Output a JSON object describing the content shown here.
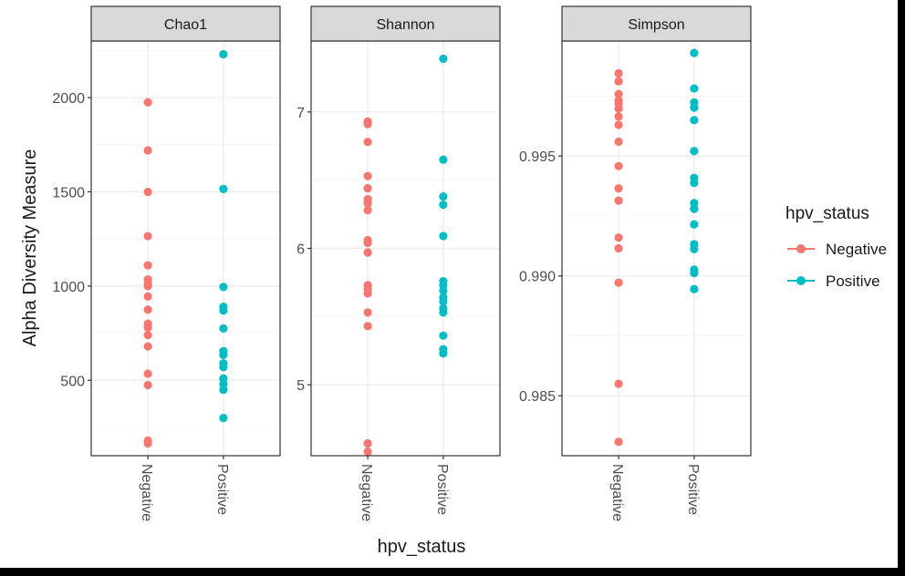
{
  "colors": {
    "negative": "#F8766D",
    "positive": "#00BFC4",
    "strip_fill": "#D9D9D9",
    "grid_major": "#EBEBEB",
    "grid_minor": "#F5F5F5",
    "frame": "#333333",
    "text": "#1A1A1A",
    "tick_text": "#4D4D4D",
    "outer_background": "#000000"
  },
  "chart_data": {
    "type": "scatter",
    "xlabel": "hpv_status",
    "ylabel": "Alpha Diversity Measure",
    "categories": [
      "Negative",
      "Positive"
    ],
    "legend": {
      "title": "hpv_status",
      "placement": "right",
      "entries": [
        "Negative",
        "Positive"
      ]
    },
    "grid": true,
    "facets": [
      {
        "title": "Chao1",
        "ylim": [
          100,
          2300
        ],
        "yticks": [
          500,
          1000,
          1500,
          2000
        ],
        "ytick_labels": [
          "500",
          "1000",
          "1500",
          "2000"
        ],
        "series": [
          {
            "name": "Negative",
            "values": [
              1975,
              1720,
              1500,
              1265,
              1110,
              1035,
              1010,
              1000,
              945,
              875,
              800,
              780,
              740,
              680,
              535,
              475,
              180,
              165
            ]
          },
          {
            "name": "Positive",
            "values": [
              2230,
              1515,
              995,
              890,
              870,
              775,
              655,
              635,
              590,
              570,
              510,
              480,
              450,
              300
            ]
          }
        ]
      },
      {
        "title": "Shannon",
        "ylim": [
          4.48,
          7.52
        ],
        "yticks": [
          5,
          6,
          7
        ],
        "ytick_labels": [
          "5",
          "6",
          "7"
        ],
        "series": [
          {
            "name": "Negative",
            "values": [
              6.93,
              6.91,
              6.78,
              6.53,
              6.44,
              6.36,
              6.33,
              6.28,
              6.06,
              6.04,
              5.97,
              5.73,
              5.7,
              5.67,
              5.53,
              5.43,
              4.57,
              4.51
            ]
          },
          {
            "name": "Positive",
            "values": [
              7.39,
              6.65,
              6.38,
              6.32,
              6.09,
              5.76,
              5.73,
              5.69,
              5.64,
              5.61,
              5.56,
              5.53,
              5.36,
              5.26,
              5.23
            ]
          }
        ]
      },
      {
        "title": "Simpson",
        "ylim": [
          0.9825,
          0.9998
        ],
        "yticks": [
          0.985,
          0.99,
          0.995
        ],
        "ytick_labels": [
          "0.985",
          "0.990",
          "0.995"
        ],
        "series": [
          {
            "name": "Negative",
            "values": [
              0.99845,
              0.99812,
              0.99759,
              0.99732,
              0.99718,
              0.99698,
              0.99665,
              0.9963,
              0.9956,
              0.99458,
              0.99365,
              0.99314,
              0.9916,
              0.99115,
              0.98972,
              0.9855,
              0.98308
            ]
          },
          {
            "name": "Positive",
            "values": [
              0.9993,
              0.99782,
              0.99724,
              0.99702,
              0.9965,
              0.99521,
              0.99409,
              0.99388,
              0.99304,
              0.9928,
              0.99215,
              0.99132,
              0.99112,
              0.99026,
              0.99012,
              0.98945
            ]
          }
        ]
      }
    ]
  }
}
